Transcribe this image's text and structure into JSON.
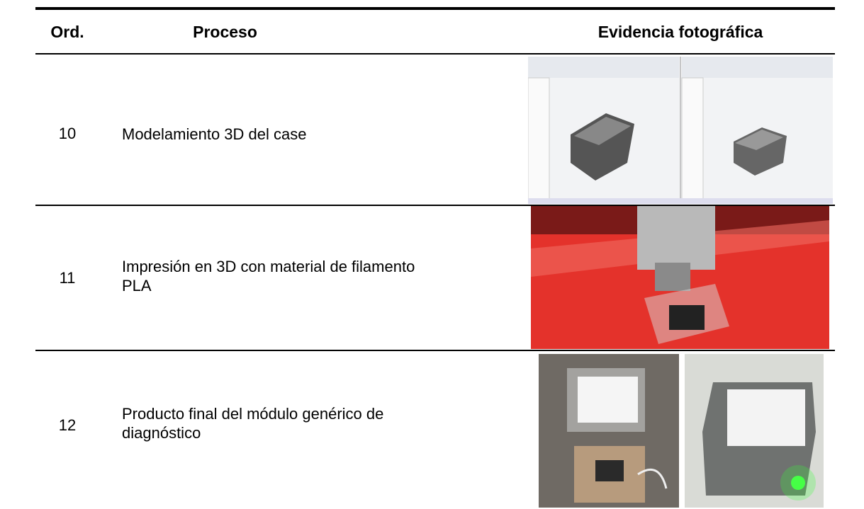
{
  "table": {
    "header": [
      "Ord.",
      "Proceso",
      "Evidencia fotográfica"
    ],
    "rows": [
      [
        "10",
        "Modelamiento 3D del case"
      ],
      [
        "11",
        "Impresión en 3D con material de filamento PLA"
      ],
      [
        "12",
        "Producto final del módulo genérico de diagnóstico"
      ]
    ]
  }
}
